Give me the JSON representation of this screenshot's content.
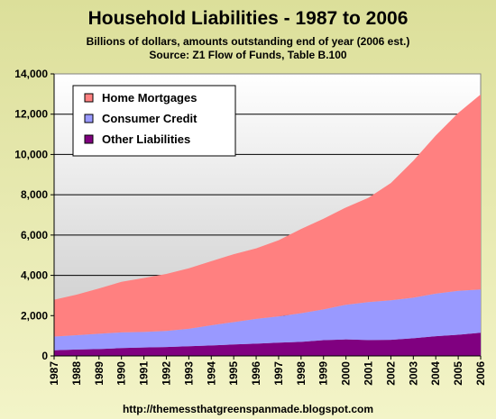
{
  "chart_data": {
    "type": "area",
    "stacked": true,
    "title": "Household Liabilities - 1987 to 2006",
    "subtitle_line1": "Billions of dollars, amounts outstanding end of year (2006 est.)",
    "subtitle_line2": "Source: Z1 Flow of Funds, Table B.100",
    "footer": "http://themessthatgreenspanmade.blogspot.com",
    "x": [
      "1987",
      "1988",
      "1989",
      "1990",
      "1991",
      "1992",
      "1993",
      "1994",
      "1995",
      "1996",
      "1997",
      "1998",
      "1999",
      "2000",
      "2001",
      "2002",
      "2003",
      "2004",
      "2005",
      "2006"
    ],
    "ylim": [
      0,
      14000
    ],
    "yticks": [
      0,
      2000,
      4000,
      6000,
      8000,
      10000,
      12000,
      14000
    ],
    "ytick_labels": [
      "0",
      "2,000",
      "4,000",
      "6,000",
      "8,000",
      "10,000",
      "12,000",
      "14,000"
    ],
    "grid": true,
    "legend_position": "top-left",
    "series": [
      {
        "name": "Other Liabilities",
        "color": "#800080",
        "values": [
          280,
          320,
          340,
          390,
          420,
          440,
          480,
          520,
          570,
          610,
          660,
          700,
          780,
          820,
          790,
          800,
          880,
          980,
          1050,
          1150
        ]
      },
      {
        "name": "Consumer Credit",
        "color": "#9999ff",
        "values": [
          680,
          710,
          760,
          780,
          770,
          800,
          870,
          1000,
          1110,
          1230,
          1300,
          1420,
          1530,
          1720,
          1880,
          1960,
          2010,
          2110,
          2180,
          2150
        ]
      },
      {
        "name": "Home Mortgages",
        "color": "#ff8080",
        "values": [
          1830,
          2010,
          2250,
          2510,
          2680,
          2830,
          3000,
          3180,
          3370,
          3500,
          3780,
          4180,
          4500,
          4830,
          5180,
          5820,
          6800,
          7850,
          8830,
          9680
        ]
      }
    ],
    "legend_order": [
      "Home Mortgages",
      "Consumer Credit",
      "Other Liabilities"
    ]
  }
}
